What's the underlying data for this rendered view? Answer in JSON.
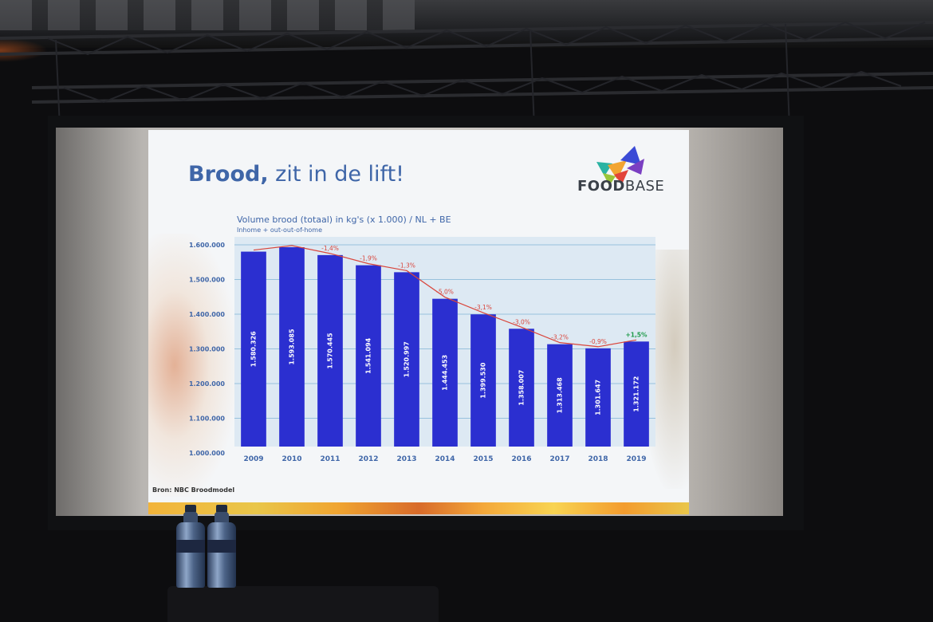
{
  "slide": {
    "title_bold": "Brood,",
    "title_rest": " zit in de lift!",
    "logo_bold": "FOOD",
    "logo_rest": "BASE",
    "source": "Bron: NBC Broodmodel"
  },
  "chart_data": {
    "type": "bar",
    "title": "Volume brood (totaal) in kg's (x 1.000) / NL + BE",
    "subtitle": "Inhome + out-out-of-home",
    "categories": [
      "2009",
      "2010",
      "2011",
      "2012",
      "2013",
      "2014",
      "2015",
      "2016",
      "2017",
      "2018",
      "2019"
    ],
    "values": [
      1580326,
      1593085,
      1570445,
      1541094,
      1520997,
      1444453,
      1399530,
      1358007,
      1313468,
      1301647,
      1321172
    ],
    "value_labels": [
      "1.580.326",
      "1.593.085",
      "1.570.445",
      "1.541.094",
      "1.520.997",
      "1.444.453",
      "1.399.530",
      "1.358.007",
      "1.313.468",
      "1.301.647",
      "1.321.172"
    ],
    "change_labels": [
      "",
      "",
      "-1,4%",
      "-1,9%",
      "-1,3%",
      "-5,0%",
      "-3,1%",
      "-3,0%",
      "-3,2%",
      "-0,9%",
      "+1,5%"
    ],
    "y_tick_labels": [
      "1.600.000",
      "1.500.000",
      "1.400.000",
      "1.300.000",
      "1.200.000",
      "1.100.000",
      "1.000.000"
    ],
    "y_ticks": [
      1600000,
      1500000,
      1400000,
      1300000,
      1200000,
      1100000,
      1000000
    ],
    "ylim": [
      1000000,
      1600000
    ],
    "bar_color": "#2b2fd0",
    "trend_color": "#d9463c",
    "positive_color": "#1f9a4a",
    "grid": true
  }
}
